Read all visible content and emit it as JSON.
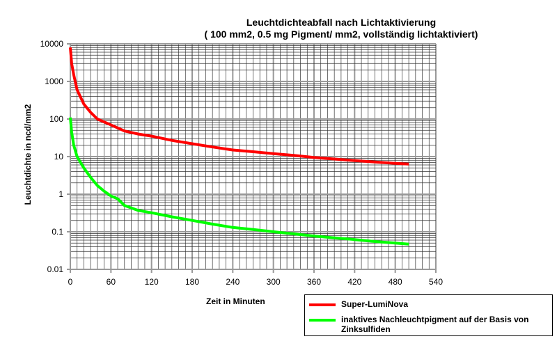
{
  "chart_data": {
    "type": "line",
    "title": "Leuchtdichteabfall nach Lichtaktivierung",
    "subtitle": "( 100 mm2, 0.5 mg Pigment/ mm2, vollständig lichtaktiviert)",
    "xlabel": "Zeit in Minuten",
    "ylabel": "Leuchtdichte in ncd/mm2",
    "xlim": [
      0,
      540
    ],
    "ylim": [
      0.01,
      10000
    ],
    "yscale": "log",
    "grid": true,
    "legend_position": "bottom-right",
    "xticks": [
      "0",
      "60",
      "120",
      "180",
      "240",
      "300",
      "360",
      "420",
      "480",
      "540"
    ],
    "yticks": [
      "10000",
      "1000",
      "100",
      "10",
      "1",
      "0.1",
      "0.01"
    ],
    "series": [
      {
        "name": "Super-LumiNova",
        "color": "#ff0000",
        "x": [
          0,
          2,
          5,
          10,
          20,
          30,
          40,
          60,
          80,
          100,
          120,
          150,
          180,
          210,
          240,
          270,
          300,
          330,
          360,
          390,
          420,
          450,
          480,
          500
        ],
        "y": [
          8000,
          3000,
          1500,
          600,
          250,
          150,
          100,
          70,
          48,
          40,
          35,
          27,
          22,
          18,
          15,
          13.5,
          12,
          10.8,
          9.5,
          8.6,
          7.8,
          7.2,
          6.6,
          6.3
        ]
      },
      {
        "name": "inaktives Nachleuchtpigment auf der Basis von Zinksulfiden",
        "color": "#00ff00",
        "x": [
          0,
          2,
          5,
          10,
          20,
          30,
          40,
          50,
          60,
          70,
          80,
          100,
          120,
          150,
          180,
          210,
          240,
          270,
          300,
          330,
          360,
          390,
          420,
          450,
          480,
          500
        ],
        "y": [
          110,
          45,
          20,
          10,
          5,
          2.8,
          1.7,
          1.2,
          0.9,
          0.75,
          0.5,
          0.37,
          0.32,
          0.25,
          0.2,
          0.16,
          0.13,
          0.115,
          0.1,
          0.088,
          0.077,
          0.069,
          0.062,
          0.055,
          0.05,
          0.047
        ]
      }
    ]
  }
}
